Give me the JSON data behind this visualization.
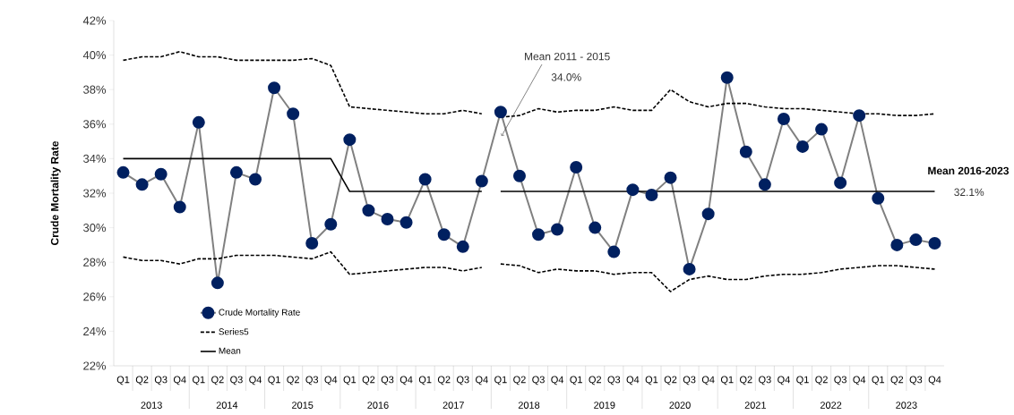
{
  "chart_data": {
    "type": "line",
    "ylabel": "Crude Mortality Rate",
    "categories": [
      "Q1",
      "Q2",
      "Q3",
      "Q4",
      "Q1",
      "Q2",
      "Q3",
      "Q4",
      "Q1",
      "Q2",
      "Q3",
      "Q4",
      "Q1",
      "Q2",
      "Q3",
      "Q4",
      "Q1",
      "Q2",
      "Q3",
      "Q4",
      "Q1",
      "Q2",
      "Q3",
      "Q4",
      "Q1",
      "Q2",
      "Q3",
      "Q4",
      "Q1",
      "Q2",
      "Q3",
      "Q4",
      "Q1",
      "Q2",
      "Q3",
      "Q4",
      "Q1",
      "Q2",
      "Q3",
      "Q4",
      "Q1",
      "Q2",
      "Q3",
      "Q4"
    ],
    "series": [
      {
        "name": "Crude Mortality Rate",
        "color": "#002060",
        "marker": "circle",
        "line_style": "solid",
        "values": [
          33.2,
          32.5,
          33.1,
          31.2,
          36.1,
          26.8,
          33.2,
          32.8,
          38.1,
          36.6,
          29.1,
          30.2,
          35.1,
          31.0,
          30.5,
          30.3,
          32.8,
          29.6,
          28.9,
          32.7,
          36.7,
          33.0,
          29.6,
          29.9,
          33.5,
          30.0,
          28.6,
          32.2,
          31.9,
          32.9,
          27.6,
          30.8,
          38.7,
          34.4,
          32.5,
          36.3,
          34.7,
          35.7,
          32.6,
          36.5,
          31.7,
          29.0,
          29.3,
          29.1
        ]
      },
      {
        "name": "Series5",
        "color": "#000000",
        "marker": "none",
        "line_style": "dashed",
        "values": [
          39.7,
          39.9,
          39.9,
          40.2,
          39.9,
          39.9,
          39.7,
          39.7,
          39.7,
          39.7,
          39.8,
          39.4,
          37.0,
          36.9,
          36.8,
          36.7,
          36.6,
          36.6,
          36.8,
          36.6,
          null,
          null,
          null,
          null,
          null,
          null,
          null,
          null,
          null,
          null,
          null,
          null,
          null,
          null,
          null,
          null,
          null,
          null,
          null,
          null,
          null,
          null,
          null,
          null
        ]
      },
      {
        "color": "#000000",
        "marker": "none",
        "line_style": "dashed",
        "values": [
          null,
          null,
          null,
          null,
          null,
          null,
          null,
          null,
          null,
          null,
          null,
          null,
          null,
          null,
          null,
          null,
          null,
          null,
          null,
          null,
          36.4,
          36.5,
          36.9,
          36.7,
          36.8,
          36.8,
          37.0,
          36.8,
          36.8,
          38.0,
          37.3,
          37.0,
          37.2,
          37.2,
          37.0,
          36.9,
          36.9,
          36.8,
          36.7,
          36.6,
          36.6,
          36.5,
          36.5,
          36.6
        ]
      },
      {
        "color": "#000000",
        "marker": "none",
        "line_style": "dashed",
        "values": [
          28.3,
          28.1,
          28.1,
          27.9,
          28.2,
          28.2,
          28.4,
          28.4,
          28.4,
          28.3,
          28.2,
          28.6,
          27.3,
          27.4,
          27.5,
          27.6,
          27.7,
          27.7,
          27.5,
          27.7,
          null,
          null,
          null,
          null,
          null,
          null,
          null,
          null,
          null,
          null,
          null,
          null,
          null,
          null,
          null,
          null,
          null,
          null,
          null,
          null,
          null,
          null,
          null,
          null
        ]
      },
      {
        "color": "#000000",
        "marker": "none",
        "line_style": "dashed",
        "values": [
          null,
          null,
          null,
          null,
          null,
          null,
          null,
          null,
          null,
          null,
          null,
          null,
          null,
          null,
          null,
          null,
          null,
          null,
          null,
          null,
          27.9,
          27.8,
          27.4,
          27.6,
          27.5,
          27.5,
          27.3,
          27.4,
          27.4,
          26.3,
          27.0,
          27.2,
          27.0,
          27.0,
          27.2,
          27.3,
          27.3,
          27.4,
          27.6,
          27.7,
          27.8,
          27.8,
          27.7,
          27.6
        ]
      },
      {
        "name": "Mean",
        "color": "#000000",
        "marker": "none",
        "line_style": "solid",
        "values": [
          34.0,
          34.0,
          34.0,
          34.0,
          34.0,
          34.0,
          34.0,
          34.0,
          34.0,
          34.0,
          34.0,
          34.0,
          32.1,
          32.1,
          32.1,
          32.1,
          32.1,
          32.1,
          32.1,
          32.1,
          null,
          null,
          null,
          null,
          null,
          null,
          null,
          null,
          null,
          null,
          null,
          null,
          null,
          null,
          null,
          null,
          null,
          null,
          null,
          null,
          null,
          null,
          null,
          null
        ]
      },
      {
        "color": "#000000",
        "marker": "none",
        "line_style": "solid",
        "values": [
          null,
          null,
          null,
          null,
          null,
          null,
          null,
          null,
          null,
          null,
          null,
          null,
          null,
          null,
          null,
          null,
          null,
          null,
          null,
          null,
          32.1,
          32.1,
          32.1,
          32.1,
          32.1,
          32.1,
          32.1,
          32.1,
          32.1,
          32.1,
          32.1,
          32.1,
          32.1,
          32.1,
          32.1,
          32.1,
          32.1,
          32.1,
          32.1,
          32.1,
          32.1,
          32.1,
          32.1,
          32.1
        ]
      }
    ],
    "ylim": [
      22,
      42
    ],
    "yticks": [
      {
        "value": 22,
        "label": "22%"
      },
      {
        "value": 24,
        "label": "24%"
      },
      {
        "value": 26,
        "label": "26%"
      },
      {
        "value": 28,
        "label": "28%"
      },
      {
        "value": 30,
        "label": "30%"
      },
      {
        "value": 32,
        "label": "32%"
      },
      {
        "value": 34,
        "label": "34%"
      },
      {
        "value": 36,
        "label": "36%"
      },
      {
        "value": 38,
        "label": "38%"
      },
      {
        "value": 40,
        "label": "40%"
      },
      {
        "value": 42,
        "label": "42%"
      }
    ],
    "annotations": [
      "Mean 2011 - 2015",
      "34.0%",
      "Mean 2016-2023",
      "32.1%",
      "2013",
      "2014",
      "2015",
      "2016",
      "2017",
      "2018",
      "2019",
      "2020",
      "2021",
      "2022",
      "2023"
    ],
    "grid": false,
    "legend": "bottom left"
  }
}
